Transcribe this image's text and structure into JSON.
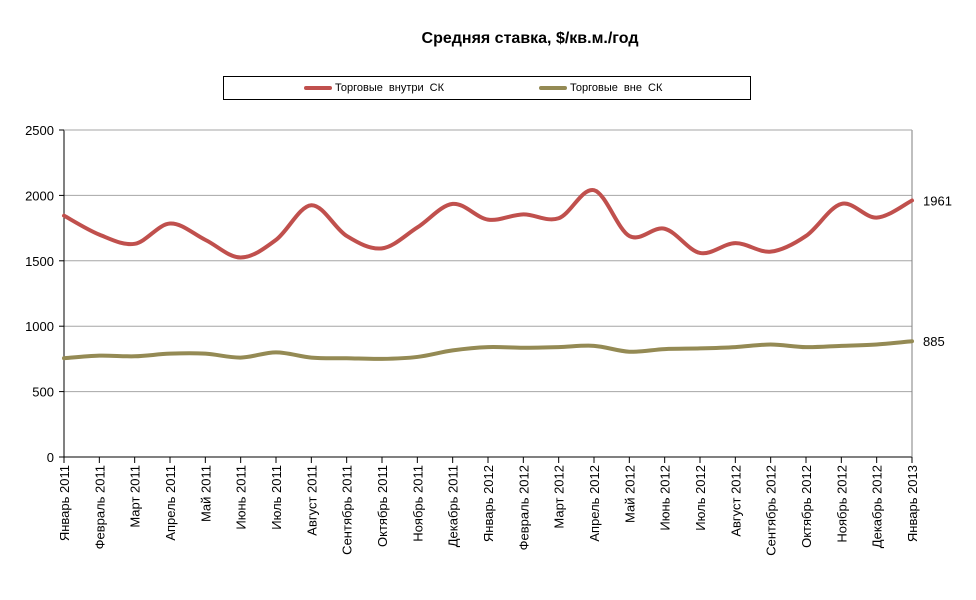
{
  "chart_data": {
    "type": "line",
    "title": "Средняя ставка, $/кв.м./год",
    "xlabel": "",
    "ylabel": "",
    "ylim": [
      0,
      2500
    ],
    "yticks": [
      0,
      500,
      1000,
      1500,
      2000,
      2500
    ],
    "grid": true,
    "legend_position": "top-center",
    "categories": [
      "Январь 2011",
      "Февраль 2011",
      "Март 2011",
      "Апрель 2011",
      "Май 2011",
      "Июнь 2011",
      "Июль 2011",
      "Август 2011",
      "Сентябрь 2011",
      "Октябрь 2011",
      "Ноябрь 2011",
      "Декабрь 2011",
      "Январь 2012",
      "Февраль 2012",
      "Март 2012",
      "Апрель 2012",
      "Май 2012",
      "Июнь 2012",
      "Июль 2012",
      "Август 2012",
      "Сентябрь 2012",
      "Октябрь 2012",
      "Ноябрь 2012",
      "Декабрь 2012",
      "Январь 2013"
    ],
    "series": [
      {
        "name": "Торговые  внутри  СК",
        "color": "#c0504d",
        "values": [
          1845,
          1700,
          1630,
          1785,
          1660,
          1525,
          1660,
          1925,
          1690,
          1595,
          1755,
          1935,
          1815,
          1855,
          1825,
          2040,
          1690,
          1745,
          1560,
          1635,
          1570,
          1690,
          1935,
          1830,
          1961
        ],
        "end_label": "1961"
      },
      {
        "name": "Торговые  вне СК",
        "color": "#948a54",
        "values": [
          755,
          775,
          770,
          790,
          790,
          760,
          800,
          760,
          755,
          750,
          765,
          815,
          840,
          835,
          840,
          850,
          805,
          825,
          830,
          840,
          860,
          840,
          850,
          860,
          885
        ],
        "end_label": "885"
      }
    ]
  }
}
